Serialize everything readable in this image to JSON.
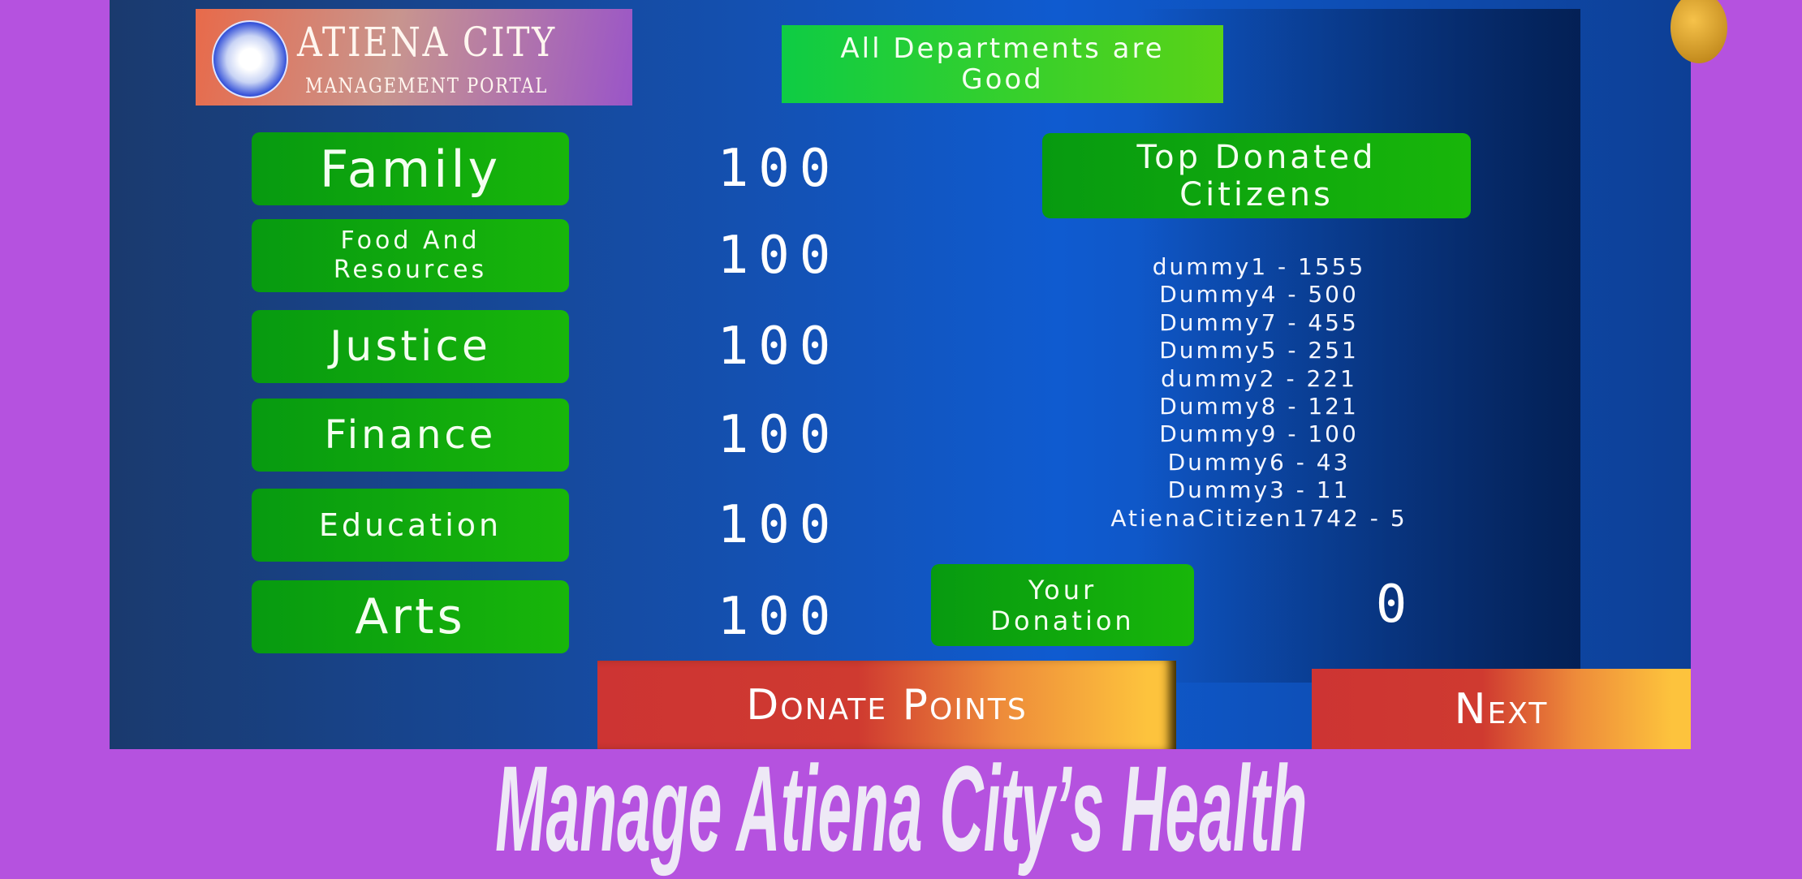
{
  "header": {
    "logo_title": "ATIENA CITY",
    "logo_subtitle": "MANAGEMENT PORTAL",
    "status": "All Departments are Good"
  },
  "departments": [
    {
      "label": "Family",
      "value": "100"
    },
    {
      "label": "Food And Resources",
      "value": "100"
    },
    {
      "label": "Justice",
      "value": "100"
    },
    {
      "label": "Finance",
      "value": "100"
    },
    {
      "label": "Education",
      "value": "100"
    },
    {
      "label": "Arts",
      "value": "100"
    }
  ],
  "leaderboard": {
    "title": "Top Donated Citizens",
    "entries": [
      "dummy1 - 1555",
      "Dummy4 - 500",
      "Dummy7 - 455",
      "Dummy5 - 251",
      "dummy2 - 221",
      "Dummy8 - 121",
      "Dummy9 - 100",
      "Dummy6 - 43",
      "Dummy3 - 11",
      "AtienaCitizen1742 - 5"
    ]
  },
  "donation": {
    "label": "Your Donation",
    "value": "0"
  },
  "buttons": {
    "donate": "Donate Points",
    "next": "Next"
  },
  "tagline": "Manage Atiena City’s Health",
  "colors": {
    "background": "#b552df",
    "button_green": "#079a10",
    "status_green": "#0ecc44",
    "button_red": "#cd3433",
    "button_yellow": "#fdc33d"
  }
}
